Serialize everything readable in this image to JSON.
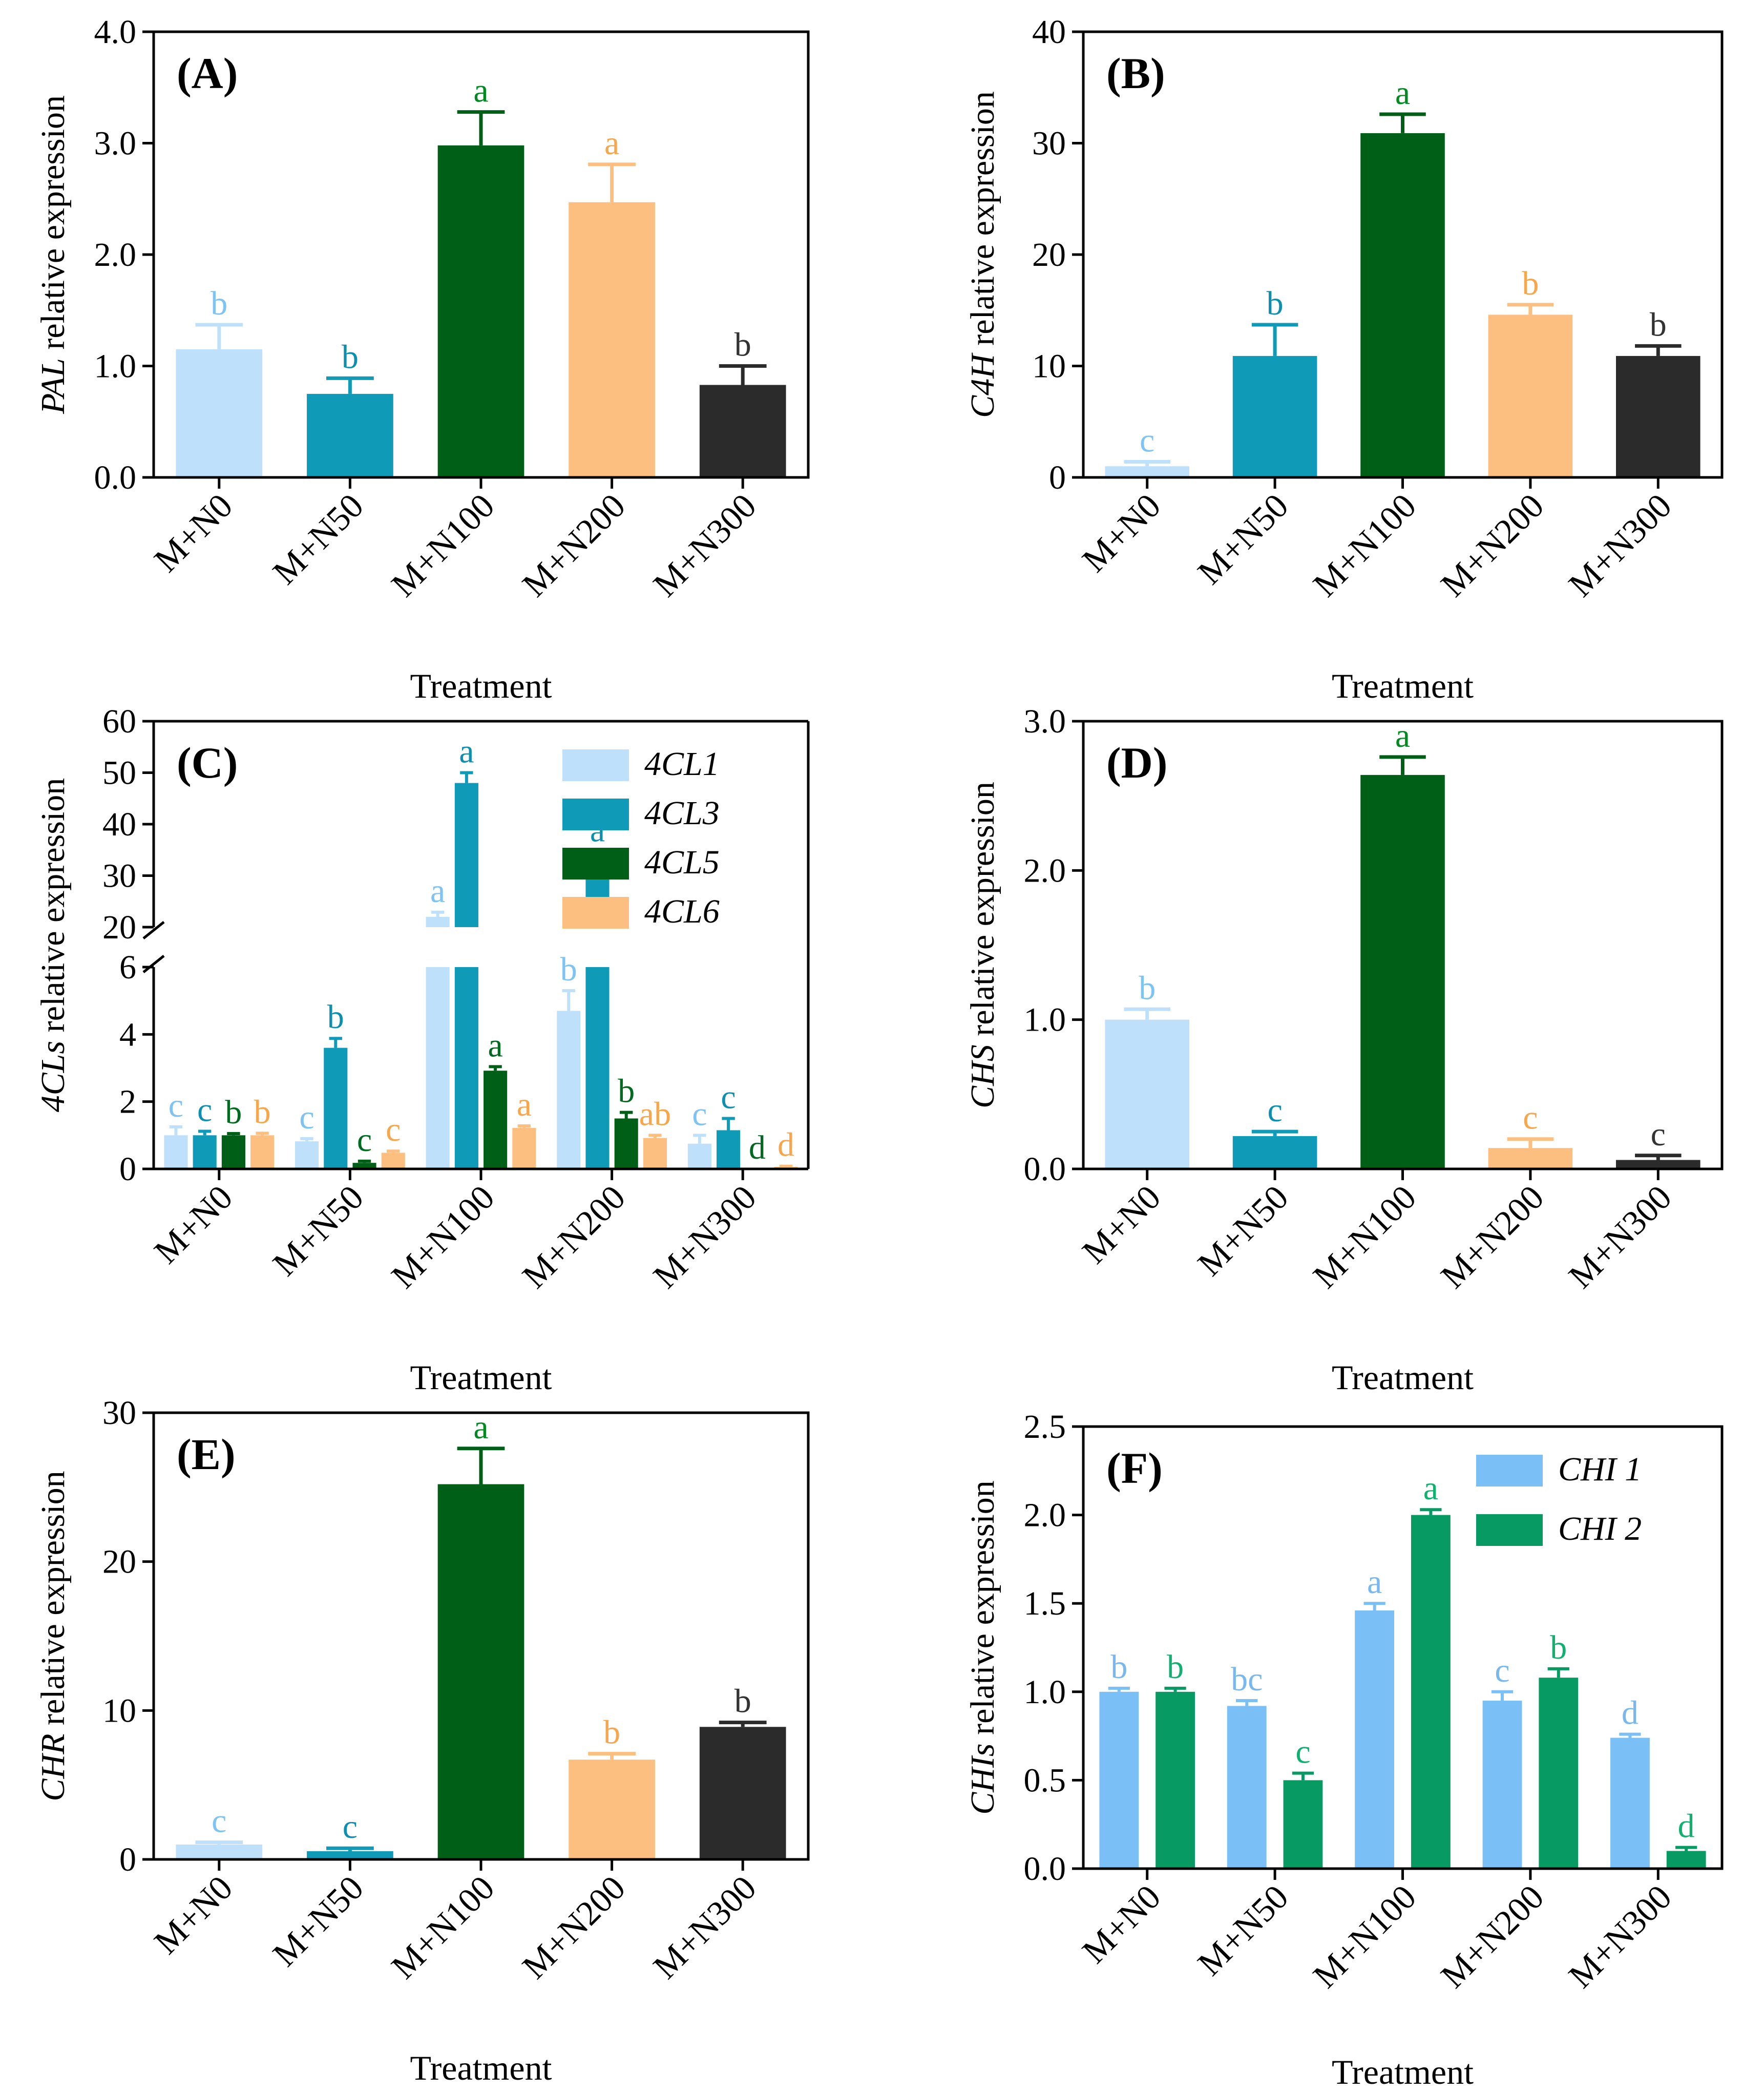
{
  "chart_data": [
    {
      "panel": "(A)",
      "type": "bar",
      "gene": "PAL",
      "ylabel_suffix": " relative expression",
      "xlabel": "Treatment",
      "categories": [
        "M+N0",
        "M+N50",
        "M+N100",
        "M+N200",
        "M+N300"
      ],
      "ylim": [
        0,
        4.0
      ],
      "yticks": [
        "0.0",
        "1.0",
        "2.0",
        "3.0",
        "4.0"
      ],
      "series": [
        {
          "name": "PAL",
          "values": [
            1.15,
            0.75,
            2.98,
            2.47,
            0.83
          ],
          "errors": [
            0.22,
            0.14,
            0.3,
            0.34,
            0.17
          ],
          "letters": [
            "b",
            "b",
            "a",
            "a",
            "b"
          ]
        }
      ],
      "bar_colors": [
        "#bfe0fa",
        "#0f9ab8",
        "#005f16",
        "#fdbf7f",
        "#2b2b2b"
      ],
      "letter_colors": [
        "#7dc3f3",
        "#0f8fb0",
        "#008a20",
        "#f7a64c",
        "#333333"
      ]
    },
    {
      "panel": "(B)",
      "type": "bar",
      "gene": "C4H",
      "ylabel_suffix": " relative expression",
      "xlabel": "Treatment",
      "categories": [
        "M+N0",
        "M+N50",
        "M+N100",
        "M+N200",
        "M+N300"
      ],
      "ylim": [
        0,
        40
      ],
      "yticks": [
        "0",
        "10",
        "20",
        "30",
        "40"
      ],
      "series": [
        {
          "name": "C4H",
          "values": [
            1.0,
            10.9,
            30.9,
            14.6,
            10.9
          ],
          "errors": [
            0.4,
            2.8,
            1.7,
            0.9,
            0.9
          ],
          "letters": [
            "c",
            "b",
            "a",
            "b",
            "b"
          ]
        }
      ],
      "bar_colors": [
        "#bfe0fa",
        "#0f9ab8",
        "#005f16",
        "#fdbf7f",
        "#2b2b2b"
      ],
      "letter_colors": [
        "#7dc3f3",
        "#0f8fb0",
        "#008a20",
        "#f7a64c",
        "#333333"
      ]
    },
    {
      "panel": "(C)",
      "type": "bar",
      "gene": "4CLs",
      "ylabel_suffix": " relative expression",
      "xlabel": "Treatment",
      "categories": [
        "M+N0",
        "M+N50",
        "M+N100",
        "M+N200",
        "M+N300"
      ],
      "broken_axis": {
        "lower": [
          0,
          6
        ],
        "upper": [
          20,
          60
        ]
      },
      "yticks_lower": [
        "0",
        "2",
        "4",
        "6"
      ],
      "yticks_upper": [
        "20",
        "30",
        "40",
        "50",
        "60"
      ],
      "series": [
        {
          "name": "4CL1",
          "color": "#bfe0fa",
          "letter_color": "#7dc3f3",
          "values": [
            1.0,
            0.82,
            22.0,
            4.7,
            0.75
          ],
          "errors": [
            0.25,
            0.08,
            0.9,
            0.6,
            0.25
          ],
          "letters": [
            "c",
            "c",
            "a",
            "b",
            "c"
          ]
        },
        {
          "name": "4CL3",
          "color": "#0f9ab8",
          "letter_color": "#0f8fb0",
          "values": [
            1.0,
            3.6,
            48.0,
            33.5,
            1.15
          ],
          "errors": [
            0.12,
            0.28,
            2.0,
            1.2,
            0.35
          ],
          "letters": [
            "c",
            "b",
            "a",
            "a",
            "c"
          ]
        },
        {
          "name": "4CL5",
          "color": "#005f16",
          "letter_color": "#006a20",
          "values": [
            1.0,
            0.18,
            2.92,
            1.5,
            0.0
          ],
          "errors": [
            0.05,
            0.05,
            0.12,
            0.18,
            0.0
          ],
          "letters": [
            "b",
            "c",
            "a",
            "b",
            "d"
          ]
        },
        {
          "name": "4CL6",
          "color": "#fdbf7f",
          "letter_color": "#f7a64c",
          "values": [
            1.0,
            0.48,
            1.22,
            0.92,
            0.06
          ],
          "errors": [
            0.06,
            0.05,
            0.06,
            0.08,
            0.02
          ],
          "letters": [
            "b",
            "c",
            "a",
            "ab",
            "d"
          ]
        }
      ]
    },
    {
      "panel": "(D)",
      "type": "bar",
      "gene": "CHS",
      "ylabel_suffix": " relative expression",
      "xlabel": "Treatment",
      "categories": [
        "M+N0",
        "M+N50",
        "M+N100",
        "M+N200",
        "M+N300"
      ],
      "ylim": [
        0,
        3.0
      ],
      "yticks": [
        "0.0",
        "1.0",
        "2.0",
        "3.0"
      ],
      "series": [
        {
          "name": "CHS",
          "values": [
            1.0,
            0.22,
            2.64,
            0.14,
            0.06
          ],
          "errors": [
            0.07,
            0.03,
            0.12,
            0.06,
            0.03
          ],
          "letters": [
            "b",
            "c",
            "a",
            "c",
            "c"
          ]
        }
      ],
      "bar_colors": [
        "#bfe0fa",
        "#0f9ab8",
        "#005f16",
        "#fdbf7f",
        "#2b2b2b"
      ],
      "letter_colors": [
        "#7dc3f3",
        "#0f8fb0",
        "#008a20",
        "#f7a64c",
        "#333333"
      ]
    },
    {
      "panel": "(E)",
      "type": "bar",
      "gene": "CHR",
      "ylabel_suffix": " relative expression",
      "xlabel": "Treatment",
      "categories": [
        "M+N0",
        "M+N50",
        "M+N100",
        "M+N200",
        "M+N300"
      ],
      "ylim": [
        0,
        30
      ],
      "yticks": [
        "0",
        "10",
        "20",
        "30"
      ],
      "series": [
        {
          "name": "CHR",
          "values": [
            1.0,
            0.55,
            25.2,
            6.7,
            8.9
          ],
          "errors": [
            0.15,
            0.2,
            2.4,
            0.4,
            0.3
          ],
          "letters": [
            "c",
            "c",
            "a",
            "b",
            "b"
          ]
        }
      ],
      "bar_colors": [
        "#bfe0fa",
        "#0f9ab8",
        "#005f16",
        "#fdbf7f",
        "#2b2b2b"
      ],
      "letter_colors": [
        "#7dc3f3",
        "#0f8fb0",
        "#008a20",
        "#f7a64c",
        "#333333"
      ]
    },
    {
      "panel": "(F)",
      "type": "bar",
      "gene": "CHIs",
      "ylabel_suffix": " relative expression",
      "xlabel": "Treatment",
      "categories": [
        "M+N0",
        "M+N50",
        "M+N100",
        "M+N200",
        "M+N300"
      ],
      "ylim": [
        0,
        2.5
      ],
      "yticks": [
        "0.0",
        "0.5",
        "1.0",
        "1.5",
        "2.0",
        "2.5"
      ],
      "series": [
        {
          "name": "CHI 1",
          "color": "#7abff5",
          "letter_color": "#79b8ee",
          "values": [
            1.0,
            0.92,
            1.46,
            0.95,
            0.74
          ],
          "errors": [
            0.02,
            0.03,
            0.04,
            0.05,
            0.02
          ],
          "letters": [
            "b",
            "bc",
            "a",
            "c",
            "d"
          ]
        },
        {
          "name": "CHI 2",
          "color": "#079a62",
          "letter_color": "#0fb070",
          "values": [
            1.0,
            0.5,
            2.0,
            1.08,
            0.1
          ],
          "errors": [
            0.02,
            0.04,
            0.03,
            0.05,
            0.02
          ],
          "letters": [
            "b",
            "c",
            "a",
            "b",
            "d"
          ]
        }
      ]
    }
  ]
}
